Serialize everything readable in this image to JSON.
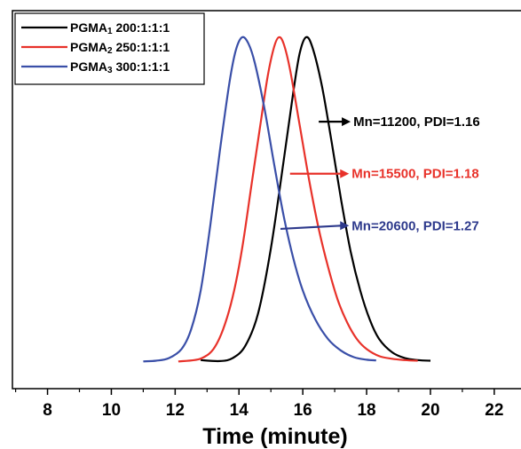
{
  "chart_data": {
    "type": "line",
    "title": "",
    "xlabel": "Time (minute)",
    "ylabel": "",
    "xlim": [
      6.9,
      23.2
    ],
    "ylim": [
      0,
      1.1
    ],
    "xticks": [
      "8",
      "10",
      "12",
      "14",
      "16",
      "18",
      "20",
      "22"
    ],
    "legend_position": "top-left",
    "grid": false,
    "series": [
      {
        "name": "PGMA1 200:1:1:1",
        "name_base": "PGMA",
        "name_sub": "1",
        "name_rest": " 200:1:1:1",
        "color": "#000000",
        "x": [
          12.8,
          13.4,
          13.8,
          14.2,
          14.6,
          15.0,
          15.4,
          15.7,
          15.9,
          16.1,
          16.3,
          16.6,
          16.9,
          17.2,
          17.5,
          17.8,
          18.1,
          18.4,
          18.8,
          19.2,
          19.6,
          20.0
        ],
        "y": [
          0.006,
          0.003,
          0.012,
          0.05,
          0.15,
          0.35,
          0.62,
          0.83,
          0.95,
          1.0,
          0.97,
          0.85,
          0.68,
          0.5,
          0.34,
          0.22,
          0.13,
          0.07,
          0.03,
          0.012,
          0.006,
          0.004
        ]
      },
      {
        "name": "PGMA2 250:1:1:1",
        "name_base": "PGMA",
        "name_sub": "2",
        "name_rest": " 250:1:1:1",
        "color": "#e8322a",
        "x": [
          12.1,
          12.6,
          12.9,
          13.2,
          13.5,
          13.8,
          14.1,
          14.4,
          14.7,
          14.9,
          15.1,
          15.25,
          15.4,
          15.6,
          15.9,
          16.2,
          16.5,
          16.8,
          17.1,
          17.4,
          17.7,
          18.0,
          18.4,
          18.8,
          19.2,
          19.6
        ],
        "y": [
          0.002,
          0.006,
          0.015,
          0.04,
          0.1,
          0.2,
          0.35,
          0.55,
          0.75,
          0.88,
          0.97,
          1.0,
          0.98,
          0.9,
          0.73,
          0.56,
          0.41,
          0.29,
          0.19,
          0.12,
          0.07,
          0.04,
          0.018,
          0.01,
          0.006,
          0.004
        ]
      },
      {
        "name": "PGMA3 300:1:1:1",
        "name_base": "PGMA",
        "name_sub": "3",
        "name_rest": " 300:1:1:1",
        "color": "#3a4fa8",
        "x": [
          11.0,
          11.4,
          11.8,
          12.2,
          12.5,
          12.8,
          13.1,
          13.4,
          13.7,
          13.9,
          14.1,
          14.3,
          14.5,
          14.8,
          15.1,
          15.4,
          15.7,
          16.0,
          16.4,
          16.8,
          17.2,
          17.6,
          18.0,
          18.3
        ],
        "y": [
          0.002,
          0.004,
          0.012,
          0.04,
          0.1,
          0.22,
          0.42,
          0.65,
          0.86,
          0.96,
          1.0,
          0.98,
          0.92,
          0.78,
          0.61,
          0.45,
          0.32,
          0.22,
          0.13,
          0.07,
          0.035,
          0.015,
          0.007,
          0.005
        ]
      }
    ],
    "annotations": [
      {
        "text": "Mn=11200, PDI=1.16",
        "color": "#000000",
        "arrow_from": [
          16.5,
          0.74
        ],
        "arrow_to": [
          17.5,
          0.74
        ]
      },
      {
        "text": "Mn=15500, PDI=1.18",
        "color": "#e8322a",
        "arrow_from": [
          15.6,
          0.58
        ],
        "arrow_to": [
          17.45,
          0.58
        ]
      },
      {
        "text": "Mn=20600, PDI=1.27",
        "color": "#2e3a8c",
        "arrow_from": [
          15.3,
          0.41
        ],
        "arrow_to": [
          17.45,
          0.42
        ]
      }
    ]
  }
}
